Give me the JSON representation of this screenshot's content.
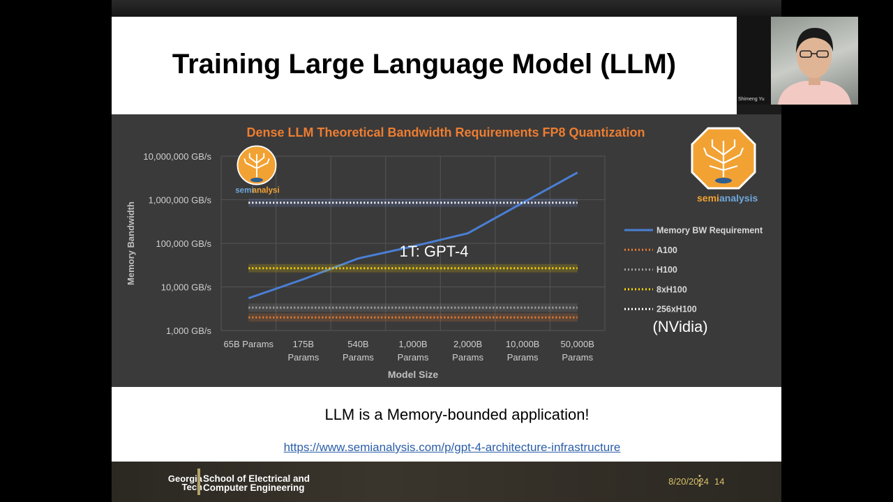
{
  "slide": {
    "title": "Training Large Language Model (LLM)",
    "caption": "LLM is a Memory-bounded application!",
    "link": "https://www.semianalysis.com/p/gpt-4-architecture-infrastructure",
    "annotation": "1T: GPT-4",
    "source_note": "(NVidia)"
  },
  "video": {
    "participant_name": "Shimeng Yu"
  },
  "footer": {
    "logo_line1": "Georgia",
    "logo_line2": "Tech",
    "school_line1": "School of Electrical and",
    "school_line2": "Computer Engineering",
    "date": "8/20/2024",
    "page": "14"
  },
  "logo": {
    "text_semi": "semi",
    "text_analysis": "analysis",
    "icon": "tree-circuit-icon"
  },
  "colors": {
    "title_orange": "#ed7d31",
    "memory_bw": "#4a7fd4",
    "a100": "#ed7d31",
    "h100": "#a5a5a5",
    "8xh100": "#ffd700",
    "256xh100": "#ffffff"
  },
  "chart_data": {
    "type": "line",
    "title": "Dense LLM Theoretical Bandwidth Requirements FP8 Quantization",
    "xlabel": "Model Size",
    "ylabel": "Memory Bandwidth",
    "y_scale": "log",
    "ylim": [
      1000,
      10000000
    ],
    "y_ticks": [
      1000,
      10000,
      100000,
      1000000,
      10000000
    ],
    "y_tick_labels": [
      "1,000 GB/s",
      "10,000 GB/s",
      "100,000 GB/s",
      "1,000,000 GB/s",
      "10,000,000 GB/s"
    ],
    "categories": [
      [
        "65B Params"
      ],
      [
        "175B",
        "Params"
      ],
      [
        "540B",
        "Params"
      ],
      [
        "1,000B",
        "Params"
      ],
      [
        "2,000B",
        "Params"
      ],
      [
        "10,000B",
        "Params"
      ],
      [
        "50,000B",
        "Params"
      ]
    ],
    "grid": true,
    "legend_position": "right",
    "series": [
      {
        "name": "Memory BW Requirement",
        "style": "solid",
        "values": [
          5500,
          15000,
          45000,
          85000,
          170000,
          850000,
          4200000
        ]
      },
      {
        "name": "A100",
        "style": "dotted",
        "values": [
          2000,
          2000,
          2000,
          2000,
          2000,
          2000,
          2000
        ]
      },
      {
        "name": "H100",
        "style": "dotted",
        "values": [
          3350,
          3350,
          3350,
          3350,
          3350,
          3350,
          3350
        ]
      },
      {
        "name": "8xH100",
        "style": "dotted",
        "values": [
          26800,
          26800,
          26800,
          26800,
          26800,
          26800,
          26800
        ]
      },
      {
        "name": "256xH100",
        "style": "dotted",
        "values": [
          857600,
          857600,
          857600,
          857600,
          857600,
          857600,
          857600
        ]
      }
    ]
  }
}
